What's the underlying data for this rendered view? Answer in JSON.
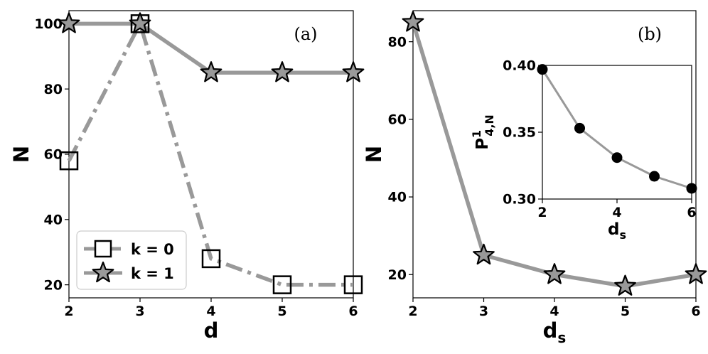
{
  "chart_data": [
    {
      "type": "line",
      "panel_label": "(a)",
      "xlabel": "d",
      "ylabel": "N",
      "xlim": [
        2,
        6
      ],
      "ylim": [
        16,
        104
      ],
      "xticks": [
        2,
        3,
        4,
        5,
        6
      ],
      "yticks": [
        20,
        40,
        60,
        80,
        100
      ],
      "x": [
        2,
        3,
        4,
        5,
        6
      ],
      "legend_position": "lower-left",
      "series": [
        {
          "name": "k = 0",
          "values": [
            58,
            100,
            28,
            20,
            20
          ],
          "marker": "square",
          "linestyle": "dashdot",
          "color": "#999999"
        },
        {
          "name": "k = 1",
          "values": [
            100,
            100,
            85,
            85,
            85
          ],
          "marker": "star",
          "linestyle": "solid",
          "color": "#999999"
        }
      ]
    },
    {
      "type": "line",
      "panel_label": "(b)",
      "xlabel": "d",
      "xlabel_sub": "s",
      "ylabel": "N",
      "xlim": [
        2,
        6
      ],
      "ylim": [
        14,
        88
      ],
      "xticks": [
        2,
        3,
        4,
        5,
        6
      ],
      "yticks": [
        20,
        40,
        60,
        80
      ],
      "x": [
        2,
        3,
        4,
        5,
        6
      ],
      "series": [
        {
          "values": [
            85,
            25,
            20,
            17,
            20
          ],
          "marker": "star",
          "linestyle": "solid",
          "color": "#999999"
        }
      ],
      "inset": {
        "type": "line",
        "xlabel": "d",
        "xlabel_sub": "s",
        "ylabel": "P",
        "ylabel_sup": "1",
        "ylabel_sub": "4,N",
        "xlim": [
          2,
          6
        ],
        "ylim": [
          0.3,
          0.4
        ],
        "xticks": [
          2,
          4,
          6
        ],
        "yticks": [
          "0.30",
          "0.35",
          "0.40"
        ],
        "x": [
          2,
          3,
          4,
          5,
          6
        ],
        "series": [
          {
            "values": [
              0.397,
              0.353,
              0.331,
              0.317,
              0.308
            ],
            "marker": "circle",
            "linestyle": "solid",
            "color": "#999999"
          }
        ]
      }
    }
  ]
}
